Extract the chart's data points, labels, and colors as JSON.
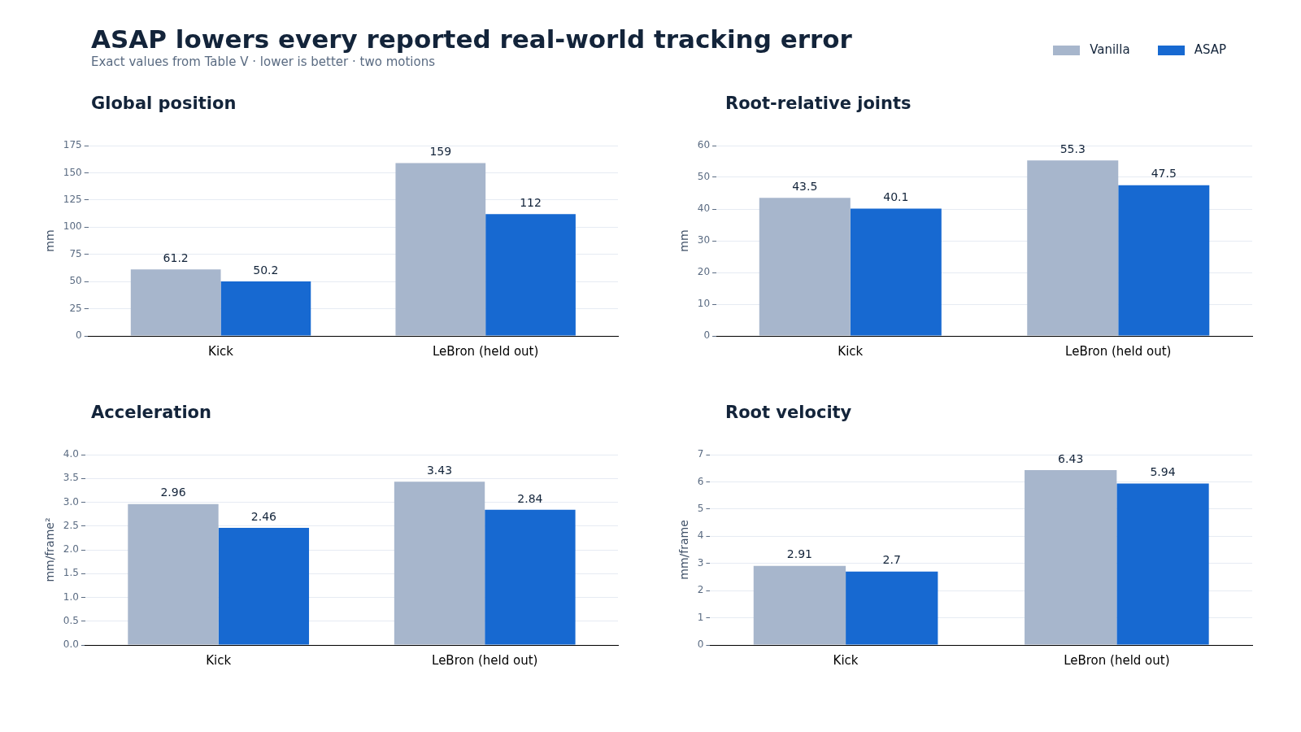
{
  "chart_data": [
    {
      "type": "bar",
      "title": "ASAP lowers every reported real-world tracking error",
      "subtitle": "Exact values from Table V · lower is better · two motions",
      "legend": "top right",
      "annotations": [
        "Global position"
      ],
      "categories": [
        "Kick",
        "LeBron (held out)"
      ],
      "ylabel": "mm",
      "ylim": [
        0,
        175
      ],
      "yticks": [
        0,
        25,
        50,
        75,
        100,
        125,
        150,
        175
      ],
      "grid": "y",
      "data_labels": true,
      "series": [
        {
          "name": "Vanilla",
          "color": "#a7b6cc",
          "values": [
            61.2,
            159
          ]
        },
        {
          "name": "ASAP",
          "color": "#1769d1",
          "values": [
            50.2,
            112
          ]
        }
      ]
    },
    {
      "type": "bar",
      "annotations": [
        "Root-relative joints"
      ],
      "categories": [
        "Kick",
        "LeBron (held out)"
      ],
      "ylabel": "mm",
      "ylim": [
        0,
        60
      ],
      "yticks": [
        0,
        10,
        20,
        30,
        40,
        50,
        60
      ],
      "grid": "y",
      "data_labels": true,
      "series": [
        {
          "color": "#a7b6cc",
          "values": [
            43.5,
            55.3
          ]
        },
        {
          "color": "#1769d1",
          "values": [
            40.1,
            47.5
          ]
        }
      ]
    },
    {
      "type": "bar",
      "annotations": [
        "Acceleration"
      ],
      "categories": [
        "Kick",
        "LeBron (held out)"
      ],
      "ylabel": "mm/frame²",
      "ylim": [
        0,
        4
      ],
      "yticks": [
        {
          "value": 0,
          "label": "0.0"
        },
        {
          "value": 0.5,
          "label": "0.5"
        },
        {
          "value": 1,
          "label": "1.0"
        },
        {
          "value": 1.5,
          "label": "1.5"
        },
        {
          "value": 2,
          "label": "2.0"
        },
        {
          "value": 2.5,
          "label": "2.5"
        },
        {
          "value": 3,
          "label": "3.0"
        },
        {
          "value": 3.5,
          "label": "3.5"
        },
        {
          "value": 4,
          "label": "4.0"
        }
      ],
      "grid": "y",
      "data_labels": true,
      "series": [
        {
          "color": "#a7b6cc",
          "values": [
            2.96,
            3.43
          ]
        },
        {
          "color": "#1769d1",
          "values": [
            2.46,
            2.84
          ]
        }
      ]
    },
    {
      "type": "bar",
      "annotations": [
        "Root velocity"
      ],
      "categories": [
        "Kick",
        "LeBron (held out)"
      ],
      "ylabel": "mm/frame",
      "ylim": [
        0,
        7
      ],
      "yticks": [
        0,
        1,
        2,
        3,
        4,
        5,
        6,
        7
      ],
      "grid": "y",
      "data_labels": true,
      "series": [
        {
          "color": "#a7b6cc",
          "values": [
            2.91,
            6.43
          ]
        },
        {
          "color": "#1769d1",
          "values": [
            2.7,
            5.94
          ]
        }
      ]
    }
  ]
}
